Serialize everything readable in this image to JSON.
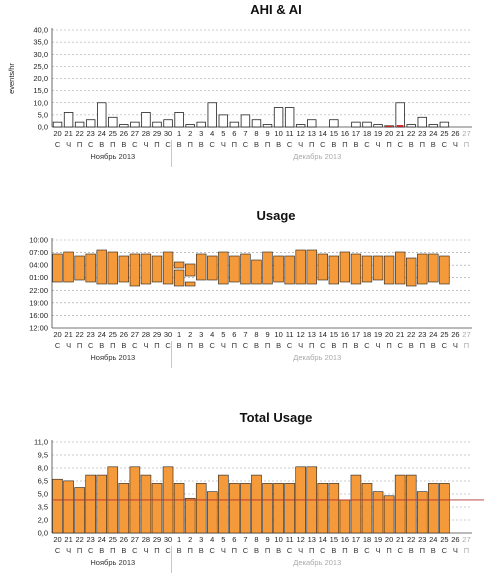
{
  "chart_data": [
    {
      "type": "bar",
      "title": "AHI & AI",
      "ylabel": "events/hr",
      "yticks": [
        "40,0",
        "35,0",
        "30,0",
        "25,0",
        "20,0",
        "15,0",
        "10,0",
        "5,0",
        "0,0"
      ],
      "ylim": [
        0,
        40
      ],
      "grid": true,
      "series": [
        {
          "name": "",
          "values": [
            2,
            6,
            2,
            3,
            10,
            4,
            1,
            2,
            6,
            2,
            3,
            6,
            1,
            2,
            10,
            5,
            2,
            5,
            3,
            1,
            8,
            8,
            1,
            3,
            0,
            3,
            0,
            2,
            2,
            1,
            0.5,
            10,
            1,
            4,
            1,
            2,
            0,
            0
          ]
        },
        {
          "name": "",
          "values": [
            0,
            0,
            0,
            0,
            0,
            0,
            0,
            0,
            0,
            0,
            0,
            0,
            0,
            0,
            0,
            0,
            0,
            0,
            0,
            0,
            0,
            0,
            0,
            0,
            0,
            0,
            0,
            0,
            0,
            0,
            0.5,
            0.8,
            0,
            0,
            0,
            0,
            0,
            0
          ]
        }
      ]
    },
    {
      "type": "bar",
      "title": "Usage",
      "yticks": [
        "10:00",
        "07:00",
        "04:00",
        "01:00",
        "22:00",
        "19:00",
        "16:00",
        "12:00"
      ],
      "grid": true,
      "sessions": [
        [
          [
            23.5,
            30.5
          ]
        ],
        [
          [
            23.5,
            31.0
          ]
        ],
        [
          [
            24.0,
            30.0
          ]
        ],
        [
          [
            23.5,
            30.5
          ]
        ],
        [
          [
            23.0,
            31.5
          ]
        ],
        [
          [
            23.0,
            31.0
          ]
        ],
        [
          [
            23.5,
            30.0
          ]
        ],
        [
          [
            22.5,
            30.5
          ]
        ],
        [
          [
            23.0,
            30.5
          ]
        ],
        [
          [
            23.5,
            30.0
          ]
        ],
        [
          [
            23.0,
            31.0
          ]
        ],
        [
          [
            22.5,
            26.5
          ],
          [
            27.0,
            28.5
          ]
        ],
        [
          [
            22.5,
            23.5
          ],
          [
            25.0,
            28.0
          ]
        ],
        [
          [
            24.0,
            30.5
          ]
        ],
        [
          [
            24.0,
            30.0
          ]
        ],
        [
          [
            23.0,
            31.0
          ]
        ],
        [
          [
            23.5,
            30.0
          ]
        ],
        [
          [
            23.0,
            30.5
          ]
        ],
        [
          [
            23.0,
            29.0
          ]
        ],
        [
          [
            23.0,
            31.0
          ]
        ],
        [
          [
            23.5,
            30.0
          ]
        ],
        [
          [
            23.0,
            30.0
          ]
        ],
        [
          [
            23.0,
            31.5
          ]
        ],
        [
          [
            23.0,
            31.5
          ]
        ],
        [
          [
            24.0,
            30.5
          ]
        ],
        [
          [
            23.0,
            30.0
          ]
        ],
        [
          [
            23.5,
            31.0
          ]
        ],
        [
          [
            23.0,
            30.5
          ]
        ],
        [
          [
            23.5,
            30.0
          ]
        ],
        [
          [
            24.0,
            30.0
          ]
        ],
        [
          [
            23.0,
            30.0
          ]
        ],
        [
          [
            23.0,
            31.0
          ]
        ],
        [
          [
            22.5,
            29.5
          ]
        ],
        [
          [
            23.0,
            30.5
          ]
        ],
        [
          [
            23.5,
            30.5
          ]
        ],
        [
          [
            23.0,
            30.0
          ]
        ],
        [],
        []
      ]
    },
    {
      "type": "bar",
      "title": "Total Usage",
      "yticks": [
        "11,0",
        "9,5",
        "8,0",
        "6,5",
        "5,0",
        "3,5",
        "2,0",
        "0,0"
      ],
      "ylim": [
        0,
        11
      ],
      "grid": true,
      "reference_line": 4.0,
      "series": [
        {
          "name": "",
          "values": [
            6.5,
            6.3,
            5.5,
            7,
            7,
            8,
            6,
            8,
            7,
            6,
            8,
            6,
            4.2,
            6,
            5,
            7,
            6,
            6,
            7,
            6,
            6,
            6,
            8,
            8,
            6,
            6,
            4,
            7,
            6,
            5,
            4.5,
            7,
            7,
            5,
            6,
            6,
            0,
            0
          ]
        }
      ]
    }
  ],
  "x_days": [
    "20",
    "21",
    "22",
    "23",
    "24",
    "25",
    "26",
    "27",
    "28",
    "29",
    "30",
    "1",
    "2",
    "3",
    "4",
    "5",
    "6",
    "7",
    "8",
    "9",
    "10",
    "11",
    "12",
    "13",
    "14",
    "15",
    "16",
    "17",
    "18",
    "19",
    "20",
    "21",
    "22",
    "23",
    "24",
    "25",
    "26",
    "27"
  ],
  "x_dow": [
    "С",
    "Ч",
    "П",
    "С",
    "В",
    "П",
    "В",
    "С",
    "Ч",
    "П",
    "С",
    "В",
    "П",
    "В",
    "С",
    "Ч",
    "П",
    "С",
    "В",
    "П",
    "В",
    "С",
    "Ч",
    "П",
    "С",
    "В",
    "П",
    "В",
    "С",
    "Ч",
    "П",
    "С",
    "В",
    "П",
    "В",
    "С",
    "Ч",
    "П"
  ],
  "months": [
    "Ноябрь 2013",
    "Декабрь 2013"
  ],
  "colors": {
    "bar_fill": "#f59a3a",
    "bar_stroke": "#222222",
    "grid": "#999999",
    "dim_text": "#aaaaaa",
    "ref_line": "#b03030",
    "ai_fill": "#cc2222"
  }
}
